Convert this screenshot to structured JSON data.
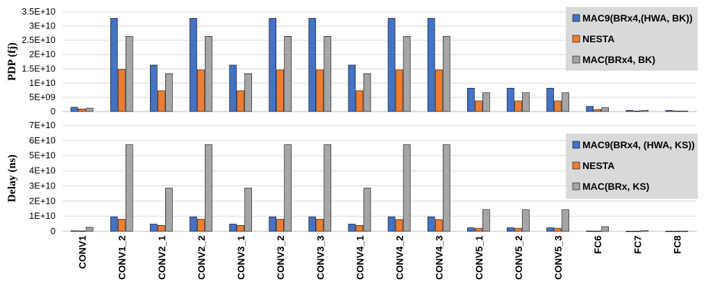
{
  "chart_data": [
    {
      "type": "bar",
      "ylabel": "PDP (fj)",
      "ylim": [
        0,
        35000000000
      ],
      "yticks": [
        "0",
        "5E+09",
        "1E+10",
        "1.5E+10",
        "2E+10",
        "2.5E+10",
        "3E+10",
        "3.5E+10"
      ],
      "legend_position": "top-right",
      "categories": [
        "CONV1",
        "CONV1_2",
        "CONV2_1",
        "CONV2_2",
        "CONV3_1",
        "CONV3_2",
        "CONV3_3",
        "CONV4_1",
        "CONV4_2",
        "CONV4_3",
        "CONV5_1",
        "CONV5_2",
        "CONV5_3",
        "FC6",
        "FC7",
        "FC8"
      ],
      "series": [
        {
          "name": "MAC9(BRx4,(HWA, BK))",
          "color": "#4472C4",
          "values": [
            1500000000,
            32700000000,
            16300000000,
            32700000000,
            16300000000,
            32700000000,
            32700000000,
            16300000000,
            32700000000,
            32700000000,
            8200000000,
            8200000000,
            8200000000,
            1800000000,
            400000000,
            400000000
          ]
        },
        {
          "name": "NESTA",
          "color": "#ED7D31",
          "values": [
            900000000,
            14800000000,
            7300000000,
            14600000000,
            7300000000,
            14600000000,
            14600000000,
            7300000000,
            14600000000,
            14600000000,
            3700000000,
            3700000000,
            3700000000,
            700000000,
            200000000,
            200000000
          ]
        },
        {
          "name": "MAC(BRx4, BK)",
          "color": "#A5A5A5",
          "values": [
            1200000000,
            26400000000,
            13300000000,
            26400000000,
            13300000000,
            26400000000,
            26400000000,
            13300000000,
            26400000000,
            26400000000,
            6600000000,
            6600000000,
            6600000000,
            1400000000,
            400000000,
            200000000
          ]
        }
      ]
    },
    {
      "type": "bar",
      "ylabel": "Delay (ns)",
      "ylim": [
        0,
        70000000000
      ],
      "yticks": [
        "0",
        "1E+10",
        "2E+10",
        "3E+10",
        "4E+10",
        "5E+10",
        "6E+10",
        "7E+10"
      ],
      "legend_position": "top-right",
      "categories": [
        "CONV1",
        "CONV1_2",
        "CONV2_1",
        "CONV2_2",
        "CONV3_1",
        "CONV3_2",
        "CONV3_3",
        "CONV4_1",
        "CONV4_2",
        "CONV4_3",
        "CONV5_1",
        "CONV5_2",
        "CONV5_3",
        "FC6",
        "FC7",
        "FC8"
      ],
      "series": [
        {
          "name": "MAC9(BRx4, (HWA, KS))",
          "color": "#4472C4",
          "values": [
            400000000,
            9600000000,
            4800000000,
            9600000000,
            4800000000,
            9600000000,
            9600000000,
            4800000000,
            9600000000,
            9600000000,
            2400000000,
            2400000000,
            2400000000,
            300000000,
            100000000,
            100000000
          ]
        },
        {
          "name": "NESTA",
          "color": "#ED7D31",
          "values": [
            300000000,
            8000000000,
            4000000000,
            8000000000,
            4000000000,
            8000000000,
            8000000000,
            4000000000,
            7800000000,
            7800000000,
            2000000000,
            2000000000,
            2000000000,
            200000000,
            100000000,
            100000000
          ]
        },
        {
          "name": "MAC(BRx, KS)",
          "color": "#A5A5A5",
          "values": [
            2700000000,
            57300000000,
            28600000000,
            57300000000,
            28600000000,
            57300000000,
            57300000000,
            28600000000,
            57300000000,
            57300000000,
            14300000000,
            14300000000,
            14300000000,
            3100000000,
            500000000,
            200000000
          ]
        }
      ]
    }
  ]
}
